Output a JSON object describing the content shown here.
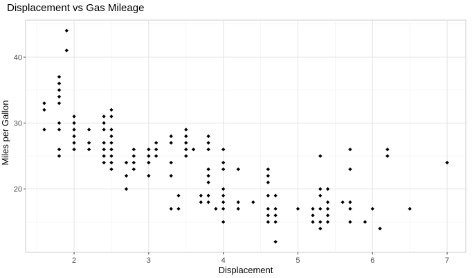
{
  "chart_data": {
    "type": "scatter",
    "title": "Displacement vs Gas Mileage",
    "xlabel": "Displacement",
    "ylabel": "Miles per Gallon",
    "xlim": [
      1.35,
      7.25
    ],
    "ylim": [
      10.4,
      45.6
    ],
    "x_ticks": [
      2,
      3,
      4,
      5,
      6,
      7
    ],
    "y_ticks": [
      20,
      30,
      40
    ],
    "x_tick_labels": [
      "2",
      "3",
      "4",
      "5",
      "6",
      "7"
    ],
    "y_tick_labels": [
      "20",
      "30",
      "40"
    ],
    "grid": true,
    "marker_color": "#000000",
    "points": [
      [
        1.6,
        33
      ],
      [
        1.6,
        32
      ],
      [
        1.6,
        29
      ],
      [
        1.8,
        37
      ],
      [
        1.8,
        36
      ],
      [
        1.8,
        35
      ],
      [
        1.8,
        34
      ],
      [
        1.8,
        33
      ],
      [
        1.8,
        30
      ],
      [
        1.8,
        29
      ],
      [
        1.8,
        26
      ],
      [
        1.8,
        25
      ],
      [
        1.9,
        44
      ],
      [
        1.9,
        41
      ],
      [
        2.0,
        31
      ],
      [
        2.0,
        30
      ],
      [
        2.0,
        29
      ],
      [
        2.0,
        28
      ],
      [
        2.0,
        27
      ],
      [
        2.0,
        26
      ],
      [
        2.2,
        29
      ],
      [
        2.2,
        27
      ],
      [
        2.2,
        26
      ],
      [
        2.4,
        31
      ],
      [
        2.4,
        30
      ],
      [
        2.4,
        29
      ],
      [
        2.4,
        27
      ],
      [
        2.4,
        26
      ],
      [
        2.4,
        25
      ],
      [
        2.4,
        24
      ],
      [
        2.5,
        32
      ],
      [
        2.5,
        31
      ],
      [
        2.5,
        29
      ],
      [
        2.5,
        28
      ],
      [
        2.5,
        27
      ],
      [
        2.5,
        26
      ],
      [
        2.5,
        25
      ],
      [
        2.5,
        24
      ],
      [
        2.5,
        23
      ],
      [
        2.7,
        24
      ],
      [
        2.7,
        22
      ],
      [
        2.7,
        20
      ],
      [
        2.8,
        26
      ],
      [
        2.8,
        25
      ],
      [
        2.8,
        24
      ],
      [
        2.8,
        23
      ],
      [
        3.0,
        26
      ],
      [
        3.0,
        25
      ],
      [
        3.0,
        24
      ],
      [
        3.0,
        22
      ],
      [
        3.1,
        27
      ],
      [
        3.1,
        26
      ],
      [
        3.1,
        25
      ],
      [
        3.3,
        28
      ],
      [
        3.3,
        27
      ],
      [
        3.3,
        24
      ],
      [
        3.3,
        22
      ],
      [
        3.3,
        17
      ],
      [
        3.4,
        19
      ],
      [
        3.4,
        17
      ],
      [
        3.5,
        29
      ],
      [
        3.5,
        28
      ],
      [
        3.5,
        27
      ],
      [
        3.5,
        26
      ],
      [
        3.5,
        25
      ],
      [
        3.6,
        26
      ],
      [
        3.7,
        19
      ],
      [
        3.7,
        18
      ],
      [
        3.8,
        28
      ],
      [
        3.8,
        27
      ],
      [
        3.8,
        26
      ],
      [
        3.8,
        23
      ],
      [
        3.8,
        22
      ],
      [
        3.8,
        21
      ],
      [
        3.8,
        19
      ],
      [
        3.8,
        18
      ],
      [
        3.9,
        17
      ],
      [
        4.0,
        26
      ],
      [
        4.0,
        24
      ],
      [
        4.0,
        23
      ],
      [
        4.0,
        20
      ],
      [
        4.0,
        19
      ],
      [
        4.0,
        18
      ],
      [
        4.0,
        17
      ],
      [
        4.0,
        15
      ],
      [
        4.2,
        23
      ],
      [
        4.2,
        18
      ],
      [
        4.2,
        17
      ],
      [
        4.4,
        18
      ],
      [
        4.6,
        23
      ],
      [
        4.6,
        22
      ],
      [
        4.6,
        21
      ],
      [
        4.6,
        19
      ],
      [
        4.6,
        17
      ],
      [
        4.6,
        16
      ],
      [
        4.6,
        15
      ],
      [
        4.7,
        19
      ],
      [
        4.7,
        17
      ],
      [
        4.7,
        16
      ],
      [
        4.7,
        15
      ],
      [
        4.7,
        12
      ],
      [
        5.0,
        17
      ],
      [
        5.2,
        17
      ],
      [
        5.2,
        16
      ],
      [
        5.2,
        15
      ],
      [
        5.3,
        25
      ],
      [
        5.3,
        20
      ],
      [
        5.3,
        19
      ],
      [
        5.3,
        17
      ],
      [
        5.3,
        15
      ],
      [
        5.3,
        14
      ],
      [
        5.4,
        20
      ],
      [
        5.4,
        18
      ],
      [
        5.4,
        17
      ],
      [
        5.4,
        16
      ],
      [
        5.4,
        15
      ],
      [
        5.6,
        18
      ],
      [
        5.7,
        26
      ],
      [
        5.7,
        23
      ],
      [
        5.7,
        18
      ],
      [
        5.7,
        17
      ],
      [
        5.7,
        15
      ],
      [
        5.9,
        15
      ],
      [
        6.0,
        17
      ],
      [
        6.1,
        14
      ],
      [
        6.2,
        26
      ],
      [
        6.2,
        25
      ],
      [
        6.5,
        17
      ],
      [
        7.0,
        24
      ]
    ]
  }
}
